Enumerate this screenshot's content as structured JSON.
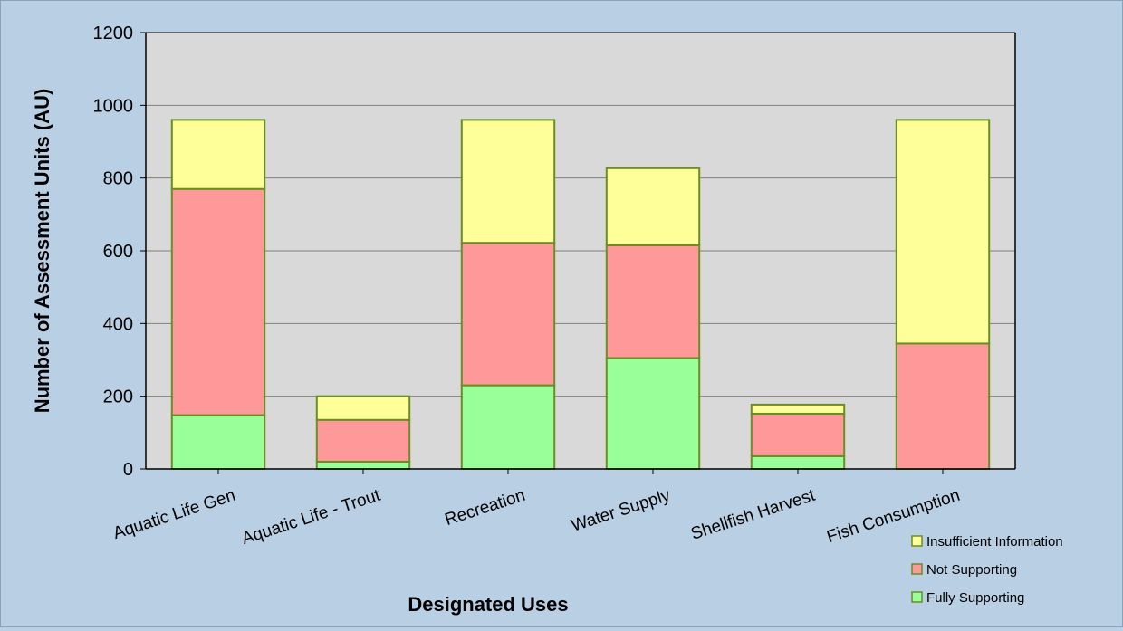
{
  "chart_data": {
    "type": "bar",
    "stacked": true,
    "title": "",
    "xlabel": "Designated Uses",
    "ylabel": "Number of Assessment Units (AU)",
    "ylim": [
      0,
      1200
    ],
    "yticks": [
      "0",
      "200",
      "400",
      "600",
      "800",
      "1000",
      "1200"
    ],
    "grid": true,
    "legend_position": "bottom-right",
    "categories": [
      "Aquatic Life Gen",
      "Aquatic Life - Trout",
      "Recreation",
      "Water Supply",
      "Shellfish Harvest",
      "Fish Consumption"
    ],
    "series": [
      {
        "name": "Fully Supporting",
        "color": "#99ff99",
        "values": [
          148,
          20,
          230,
          305,
          35,
          0
        ]
      },
      {
        "name": "Not Supporting",
        "color": "#ff9999",
        "values": [
          622,
          115,
          392,
          310,
          117,
          345
        ]
      },
      {
        "name": "Insufficient Information",
        "color": "#ffff99",
        "values": [
          190,
          65,
          338,
          212,
          25,
          615
        ]
      }
    ],
    "legend_order": [
      "Insufficient Information",
      "Not Supporting",
      "Fully Supporting"
    ],
    "colors": {
      "background": "#b9cfe4",
      "plot_area": "#d9d9d9",
      "bar_border": "#6b8e23",
      "gridline": "#808080"
    }
  }
}
